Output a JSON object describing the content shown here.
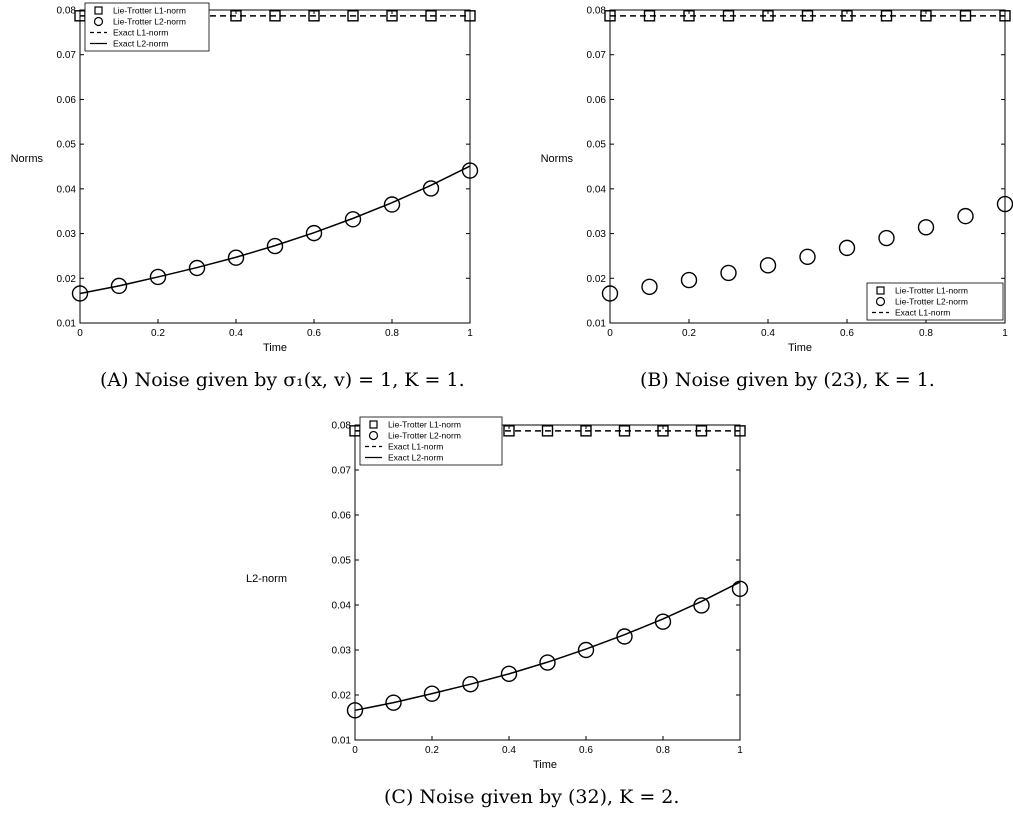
{
  "chart_data": [
    {
      "type": "scatter",
      "caption": "(A) Noise given by σ₁(x, v) = 1, K = 1.",
      "xlabel": "Time",
      "ylabel": "Norms",
      "xlim": [
        0,
        1
      ],
      "ylim": [
        0.01,
        0.08
      ],
      "xticks": [
        "0",
        "0.2",
        "0.4",
        "0.6",
        "0.8",
        "1"
      ],
      "yticks": [
        "0.01",
        "0.02",
        "0.03",
        "0.04",
        "0.05",
        "0.06",
        "0.07",
        "0.08"
      ],
      "x": [
        0,
        0.1,
        0.2,
        0.3,
        0.4,
        0.5,
        0.6,
        0.7,
        0.8,
        0.9,
        1.0
      ],
      "legend_position": "top-left",
      "series": [
        {
          "name": "Lie-Trotter L1-norm",
          "marker": "square",
          "values": [
            0.0787,
            0.0787,
            0.0787,
            0.0787,
            0.0787,
            0.0787,
            0.0787,
            0.0787,
            0.0787,
            0.0787,
            0.0787
          ]
        },
        {
          "name": "Lie-Trotter L2-norm",
          "marker": "circle",
          "values": [
            0.0166,
            0.0183,
            0.0203,
            0.0223,
            0.0246,
            0.0272,
            0.0301,
            0.0332,
            0.0365,
            0.0401,
            0.0441
          ]
        },
        {
          "name": "Exact L1-norm",
          "line": "dashed",
          "values": [
            0.0787,
            0.0787,
            0.0787,
            0.0787,
            0.0787,
            0.0787,
            0.0787,
            0.0787,
            0.0787,
            0.0787,
            0.0787
          ]
        },
        {
          "name": "Exact L2-norm",
          "line": "solid",
          "values": [
            0.0166,
            0.0183,
            0.0203,
            0.0224,
            0.0247,
            0.0273,
            0.0302,
            0.0334,
            0.0369,
            0.0408,
            0.0451
          ]
        }
      ]
    },
    {
      "type": "scatter",
      "caption": "(B) Noise given by (23), K = 1.",
      "xlabel": "Time",
      "ylabel": "Norms",
      "xlim": [
        0,
        1
      ],
      "ylim": [
        0.01,
        0.08
      ],
      "xticks": [
        "0",
        "0.2",
        "0.4",
        "0.6",
        "0.8",
        "1"
      ],
      "yticks": [
        "0.01",
        "0.02",
        "0.03",
        "0.04",
        "0.05",
        "0.06",
        "0.07",
        "0.08"
      ],
      "x": [
        0,
        0.1,
        0.2,
        0.3,
        0.4,
        0.5,
        0.6,
        0.7,
        0.8,
        0.9,
        1.0
      ],
      "legend_position": "bottom-right",
      "series": [
        {
          "name": "Lie-Trotter L1-norm",
          "marker": "square",
          "values": [
            0.0787,
            0.0787,
            0.0787,
            0.0787,
            0.0787,
            0.0787,
            0.0787,
            0.0787,
            0.0787,
            0.0787,
            0.0787
          ]
        },
        {
          "name": "Lie-Trotter L2-norm",
          "marker": "circle",
          "values": [
            0.0166,
            0.0181,
            0.0196,
            0.0212,
            0.0229,
            0.0248,
            0.0268,
            0.029,
            0.0314,
            0.0339,
            0.0366
          ]
        },
        {
          "name": "Exact L1-norm",
          "line": "dashed",
          "values": [
            0.0787,
            0.0787,
            0.0787,
            0.0787,
            0.0787,
            0.0787,
            0.0787,
            0.0787,
            0.0787,
            0.0787,
            0.0787
          ]
        }
      ]
    },
    {
      "type": "scatter",
      "caption": "(C) Noise given by (32), K = 2.",
      "xlabel": "Time",
      "ylabel": "L2-norm",
      "xlim": [
        0,
        1
      ],
      "ylim": [
        0.01,
        0.08
      ],
      "xticks": [
        "0",
        "0.2",
        "0.4",
        "0.6",
        "0.8",
        "1"
      ],
      "yticks": [
        "0.01",
        "0.02",
        "0.03",
        "0.04",
        "0.05",
        "0.06",
        "0.07",
        "0.08"
      ],
      "x": [
        0,
        0.1,
        0.2,
        0.3,
        0.4,
        0.5,
        0.6,
        0.7,
        0.8,
        0.9,
        1.0
      ],
      "legend_position": "top-left",
      "series": [
        {
          "name": "Lie-Trotter L1-norm",
          "marker": "square",
          "values": [
            0.0787,
            0.0787,
            0.0787,
            0.0787,
            0.0787,
            0.0787,
            0.0787,
            0.0787,
            0.0787,
            0.0787,
            0.0787
          ]
        },
        {
          "name": "Lie-Trotter L2-norm",
          "marker": "circle",
          "values": [
            0.0166,
            0.0183,
            0.0203,
            0.0224,
            0.0247,
            0.0272,
            0.03,
            0.033,
            0.0363,
            0.0399,
            0.0436
          ]
        },
        {
          "name": "Exact L1-norm",
          "line": "dashed",
          "values": [
            0.0787,
            0.0787,
            0.0787,
            0.0787,
            0.0787,
            0.0787,
            0.0787,
            0.0787,
            0.0787,
            0.0787,
            0.0787
          ]
        },
        {
          "name": "Exact L2-norm",
          "line": "solid",
          "values": [
            0.0166,
            0.0183,
            0.0203,
            0.0224,
            0.0247,
            0.0273,
            0.0302,
            0.0334,
            0.0369,
            0.0408,
            0.0451
          ]
        }
      ]
    }
  ]
}
